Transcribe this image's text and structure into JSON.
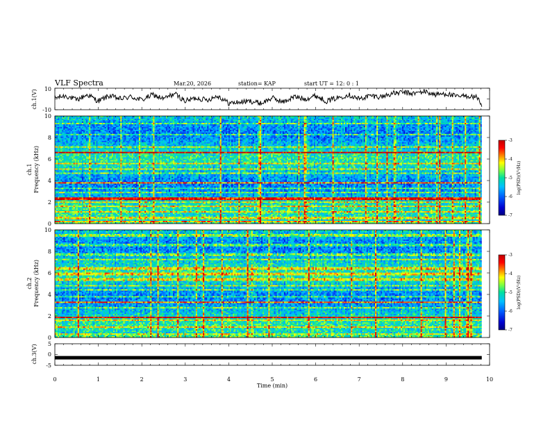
{
  "header": {
    "title": "VLF Spectra",
    "date": "Mar.20, 2026",
    "station": "station= KAP",
    "start_ut": "start  UT =   12: 0  : 1"
  },
  "colorbar": {
    "label": "log(PSD)(V²/Hz)",
    "ticks": [
      "-3",
      "-4",
      "-5",
      "-6",
      "-7"
    ],
    "colors": [
      "#c00000",
      "#ff0000",
      "#ff8000",
      "#ffff00",
      "#80ff40",
      "#00e0a0",
      "#00c0ff",
      "#0060ff",
      "#0000d0",
      "#000080"
    ]
  },
  "chart_data": [
    {
      "type": "line",
      "name": "ch1_waveform",
      "ylabel": "ch.1(V)",
      "ylim": [
        -10,
        10
      ],
      "yticks": [
        "10",
        "-10"
      ],
      "xlim": [
        0,
        10
      ],
      "x": [
        0.0,
        0.25,
        0.5,
        0.75,
        1.0,
        1.25,
        1.5,
        1.75,
        2.0,
        2.25,
        2.5,
        2.75,
        3.0,
        3.25,
        3.5,
        3.75,
        4.0,
        4.25,
        4.5,
        4.75,
        5.0,
        5.25,
        5.5,
        5.75,
        6.0,
        6.25,
        6.5,
        6.75,
        7.0,
        7.25,
        7.5,
        7.75,
        8.0,
        8.25,
        8.5,
        8.75,
        9.0,
        9.25,
        9.5,
        9.75,
        9.82
      ],
      "values": [
        1,
        3,
        -1,
        4,
        -2,
        3,
        0,
        2,
        -1,
        4,
        0,
        5,
        -2,
        1,
        -1,
        3,
        -4,
        -3,
        -2,
        -4,
        1,
        -3,
        2,
        0,
        3,
        -2,
        1,
        4,
        0,
        3,
        2,
        5,
        6,
        5,
        7,
        4,
        5,
        2,
        3,
        1,
        -8
      ]
    },
    {
      "type": "heatmap",
      "name": "ch1_spectrogram",
      "ylabel": "ch.1",
      "ylabel2": "Frequency (kHz)",
      "ylim": [
        0,
        10
      ],
      "yticks": [
        "0",
        "2",
        "4",
        "6",
        "8",
        "10"
      ],
      "xlim": [
        0,
        9.82
      ],
      "value_range": [
        -7,
        -3
      ],
      "bands_khz": [
        0.2,
        0.5,
        1.1,
        1.6,
        2.0,
        2.3,
        2.9,
        3.3,
        3.8,
        4.7,
        5.1,
        5.6,
        6.6,
        7.1,
        8.3,
        9.3
      ],
      "strong_bands_khz": [
        3.8,
        6.6,
        2.3
      ]
    },
    {
      "type": "heatmap",
      "name": "ch2_spectrogram",
      "ylabel": "ch.2",
      "ylabel2": "Frequency (kHz)",
      "ylim": [
        0,
        10
      ],
      "yticks": [
        "0",
        "2",
        "4",
        "6",
        "8",
        "10"
      ],
      "xlim": [
        0,
        9.82
      ],
      "value_range": [
        -7,
        -3
      ],
      "bands_khz": [
        0.3,
        1.0,
        1.6,
        1.9,
        2.8,
        3.3,
        3.8,
        4.4,
        4.8,
        5.4,
        5.9,
        6.4,
        7.2,
        7.7,
        8.6,
        9.5
      ],
      "strong_bands_khz": [
        1.9,
        3.3
      ]
    },
    {
      "type": "line",
      "name": "ch3_waveform",
      "ylabel": "ch.3(V)",
      "ylim": [
        -5,
        5
      ],
      "yticks": [
        "5",
        "0",
        "-5"
      ],
      "xlabel": "Time (min)",
      "xlim": [
        0,
        10
      ],
      "xticks": [
        "0",
        "1",
        "2",
        "3",
        "4",
        "5",
        "6",
        "7",
        "8",
        "9",
        "10"
      ],
      "x": [
        0,
        9.82
      ],
      "values": [
        -1.5,
        -1.5
      ]
    }
  ]
}
